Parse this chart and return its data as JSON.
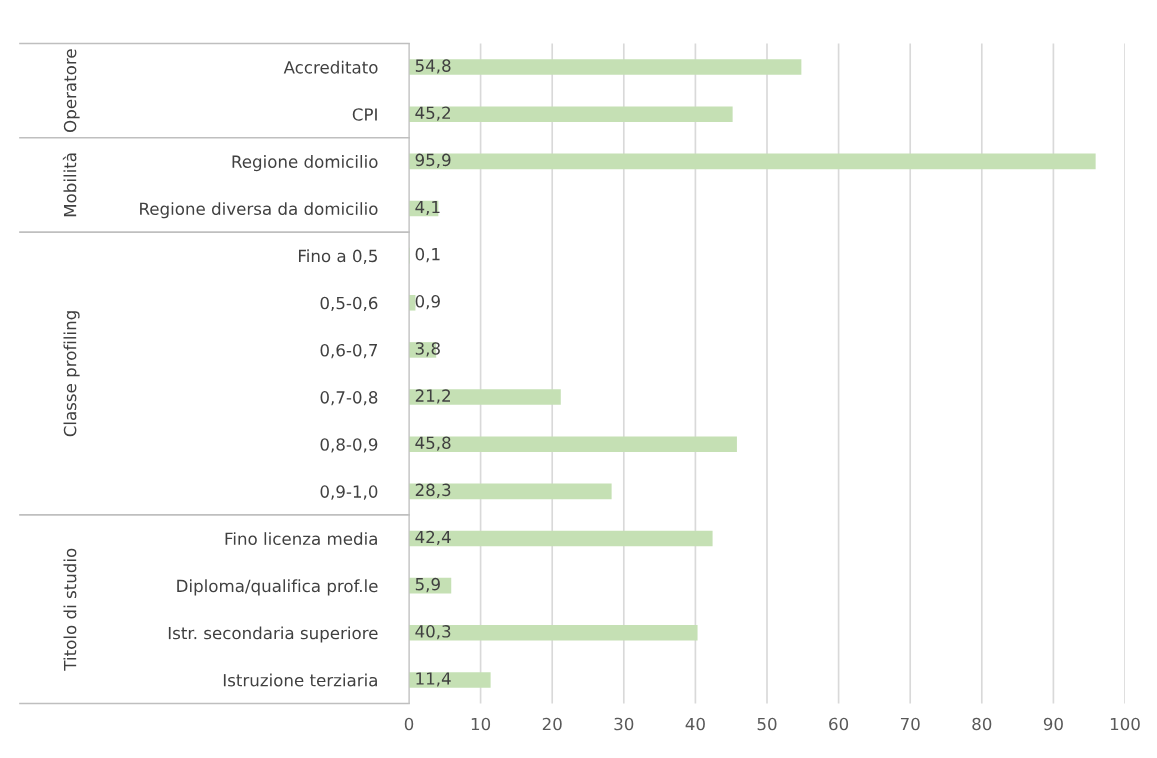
{
  "chart_data": {
    "type": "bar",
    "orientation": "horizontal",
    "categories": [
      "Accreditato",
      "CPI",
      "Regione domicilio",
      "Regione diversa da domicilio",
      "Fino a 0,5",
      "0,5-0,6",
      "0,6-0,7",
      "0,7-0,8",
      "0,8-0,9",
      "0,9-1,0",
      "Fino licenza media",
      "Diploma/qualifica prof.le",
      "Istr. secondaria superiore",
      "Istruzione terziaria"
    ],
    "values": [
      54.8,
      45.2,
      95.9,
      4.1,
      0.1,
      0.9,
      3.8,
      21.2,
      45.8,
      28.3,
      42.4,
      5.9,
      40.3,
      11.4
    ],
    "value_labels": [
      "54,8",
      "45,2",
      "95,9",
      "4,1",
      "0,1",
      "0,9",
      "3,8",
      "21,2",
      "45,8",
      "28,3",
      "42,4",
      "5,9",
      "40,3",
      "11,4"
    ],
    "color": "#c5e0b4",
    "xlim": [
      0,
      100
    ],
    "xticks": [
      0,
      10,
      20,
      30,
      40,
      50,
      60,
      70,
      80,
      90,
      100
    ],
    "grid": "x",
    "annotations": [
      "Operatore",
      "Mobilità",
      "Classe profiling",
      "Titolo di studio"
    ]
  }
}
